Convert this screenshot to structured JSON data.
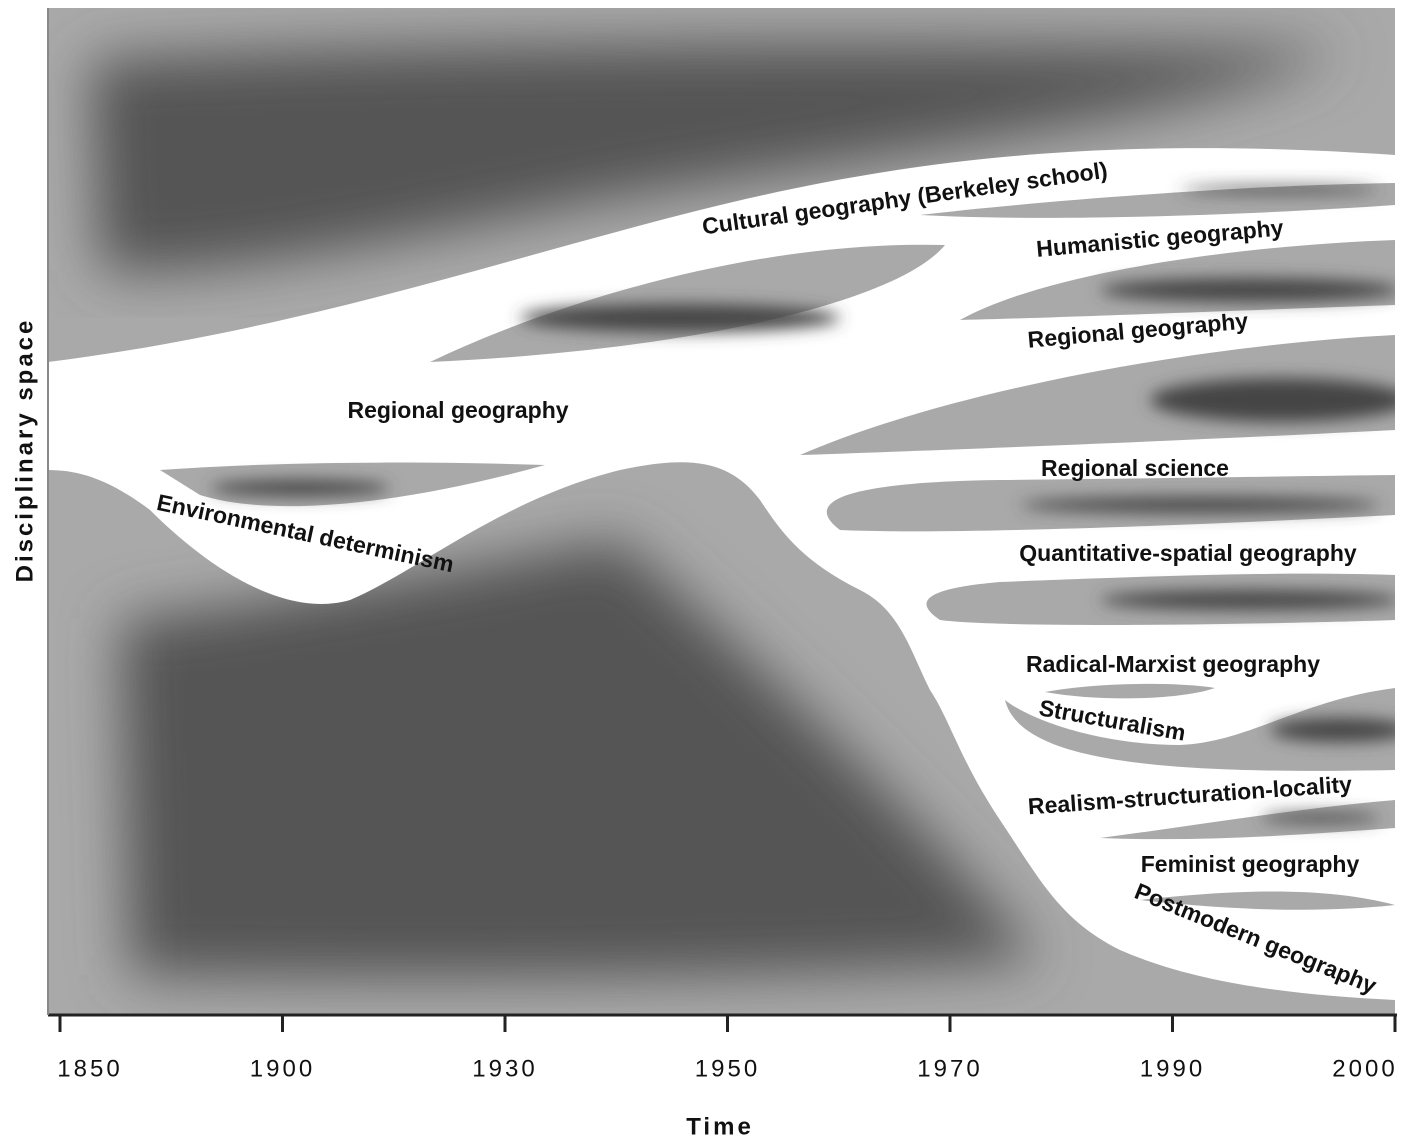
{
  "axis": {
    "x_label": "Time",
    "y_label": "Disciplinary space",
    "ticks": [
      "1850",
      "1900",
      "1930",
      "1950",
      "1970",
      "1990",
      "2000"
    ]
  },
  "streams": [
    {
      "label": "Cultural geography (Berkeley school)"
    },
    {
      "label": "Humanistic geography"
    },
    {
      "label": "Regional geography"
    },
    {
      "label": "Regional geography"
    },
    {
      "label": "Environmental determinism"
    },
    {
      "label": "Regional science"
    },
    {
      "label": "Quantitative-spatial geography"
    },
    {
      "label": "Radical-Marxist geography"
    },
    {
      "label": "Structuralism"
    },
    {
      "label": "Realism-structuration-locality"
    },
    {
      "label": "Feminist geography"
    },
    {
      "label": "Postmodern geography"
    }
  ]
}
